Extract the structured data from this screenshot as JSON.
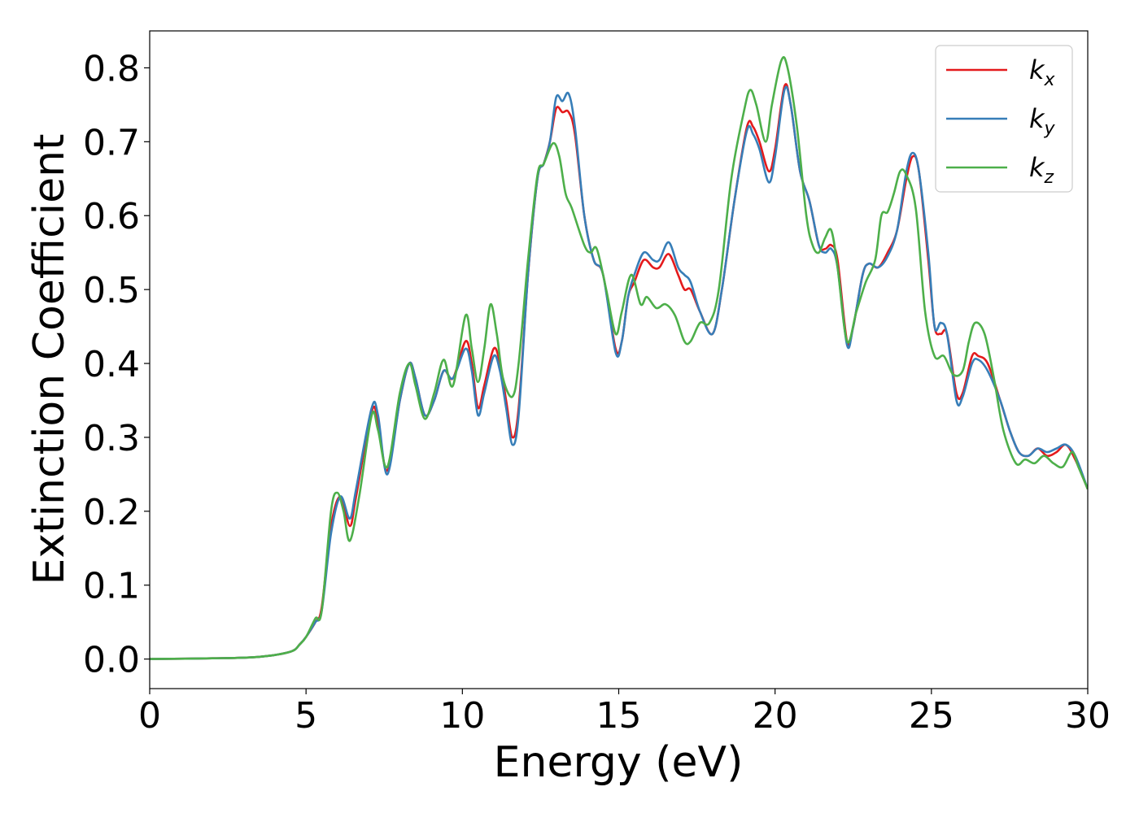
{
  "chart_data": {
    "type": "line",
    "xlabel": "Energy (eV)",
    "ylabel": "Extinction Coefficient",
    "xlim": [
      0,
      30
    ],
    "ylim": [
      -0.04,
      0.85
    ],
    "xticks": [
      0,
      5,
      10,
      15,
      20,
      25,
      30
    ],
    "xtick_labels": [
      "0",
      "5",
      "10",
      "15",
      "20",
      "25",
      "30"
    ],
    "yticks": [
      0.0,
      0.1,
      0.2,
      0.3,
      0.4,
      0.5,
      0.6,
      0.7,
      0.8
    ],
    "ytick_labels": [
      "0.0",
      "0.1",
      "0.2",
      "0.3",
      "0.4",
      "0.5",
      "0.6",
      "0.7",
      "0.8"
    ],
    "grid": false,
    "legend_position": "top-right",
    "series": [
      {
        "name": "k_x",
        "label_main": "k",
        "label_sub": "x",
        "color": "#e41a1c",
        "points": [
          [
            0,
            0
          ],
          [
            2,
            0.001
          ],
          [
            3.5,
            0.003
          ],
          [
            4.5,
            0.01
          ],
          [
            4.8,
            0.02
          ],
          [
            5.0,
            0.03
          ],
          [
            5.3,
            0.05
          ],
          [
            5.5,
            0.07
          ],
          [
            5.8,
            0.18
          ],
          [
            6.1,
            0.22
          ],
          [
            6.4,
            0.18
          ],
          [
            6.6,
            0.22
          ],
          [
            7.1,
            0.335
          ],
          [
            7.3,
            0.32
          ],
          [
            7.6,
            0.255
          ],
          [
            8.0,
            0.35
          ],
          [
            8.3,
            0.4
          ],
          [
            8.5,
            0.38
          ],
          [
            8.8,
            0.33
          ],
          [
            9.1,
            0.35
          ],
          [
            9.4,
            0.39
          ],
          [
            9.7,
            0.38
          ],
          [
            10.1,
            0.43
          ],
          [
            10.3,
            0.4
          ],
          [
            10.5,
            0.34
          ],
          [
            10.7,
            0.37
          ],
          [
            11.0,
            0.42
          ],
          [
            11.2,
            0.4
          ],
          [
            11.4,
            0.35
          ],
          [
            11.6,
            0.3
          ],
          [
            11.8,
            0.34
          ],
          [
            12.1,
            0.52
          ],
          [
            12.4,
            0.65
          ],
          [
            12.6,
            0.67
          ],
          [
            12.8,
            0.7
          ],
          [
            13.0,
            0.745
          ],
          [
            13.2,
            0.74
          ],
          [
            13.4,
            0.74
          ],
          [
            13.6,
            0.71
          ],
          [
            13.9,
            0.6
          ],
          [
            14.2,
            0.54
          ],
          [
            14.5,
            0.52
          ],
          [
            14.9,
            0.42
          ],
          [
            15.1,
            0.43
          ],
          [
            15.3,
            0.49
          ],
          [
            15.5,
            0.51
          ],
          [
            15.8,
            0.54
          ],
          [
            16.1,
            0.53
          ],
          [
            16.3,
            0.53
          ],
          [
            16.6,
            0.548
          ],
          [
            16.9,
            0.52
          ],
          [
            17.1,
            0.5
          ],
          [
            17.3,
            0.5
          ],
          [
            17.6,
            0.47
          ],
          [
            18.0,
            0.44
          ],
          [
            18.3,
            0.5
          ],
          [
            18.7,
            0.62
          ],
          [
            19.1,
            0.72
          ],
          [
            19.3,
            0.72
          ],
          [
            19.5,
            0.7
          ],
          [
            19.8,
            0.66
          ],
          [
            20.0,
            0.69
          ],
          [
            20.3,
            0.775
          ],
          [
            20.5,
            0.75
          ],
          [
            20.8,
            0.66
          ],
          [
            21.1,
            0.62
          ],
          [
            21.4,
            0.56
          ],
          [
            21.6,
            0.555
          ],
          [
            21.8,
            0.56
          ],
          [
            22.0,
            0.54
          ],
          [
            22.3,
            0.43
          ],
          [
            22.5,
            0.45
          ],
          [
            22.8,
            0.52
          ],
          [
            23.0,
            0.535
          ],
          [
            23.3,
            0.53
          ],
          [
            23.6,
            0.55
          ],
          [
            23.9,
            0.58
          ],
          [
            24.2,
            0.65
          ],
          [
            24.4,
            0.68
          ],
          [
            24.6,
            0.66
          ],
          [
            24.9,
            0.54
          ],
          [
            25.1,
            0.45
          ],
          [
            25.3,
            0.44
          ],
          [
            25.5,
            0.44
          ],
          [
            25.8,
            0.36
          ],
          [
            26.0,
            0.36
          ],
          [
            26.3,
            0.41
          ],
          [
            26.5,
            0.41
          ],
          [
            26.8,
            0.4
          ],
          [
            27.2,
            0.35
          ],
          [
            27.5,
            0.31
          ],
          [
            27.8,
            0.28
          ],
          [
            28.1,
            0.275
          ],
          [
            28.4,
            0.285
          ],
          [
            28.7,
            0.275
          ],
          [
            29.0,
            0.28
          ],
          [
            29.3,
            0.29
          ],
          [
            29.6,
            0.27
          ],
          [
            30,
            0.23
          ]
        ]
      },
      {
        "name": "k_y",
        "label_main": "k",
        "label_sub": "y",
        "color": "#377eb8",
        "points": [
          [
            0,
            0
          ],
          [
            2,
            0.001
          ],
          [
            3.5,
            0.003
          ],
          [
            4.5,
            0.01
          ],
          [
            4.8,
            0.02
          ],
          [
            5.0,
            0.03
          ],
          [
            5.3,
            0.05
          ],
          [
            5.5,
            0.065
          ],
          [
            5.8,
            0.17
          ],
          [
            6.1,
            0.22
          ],
          [
            6.4,
            0.19
          ],
          [
            6.6,
            0.23
          ],
          [
            7.1,
            0.34
          ],
          [
            7.3,
            0.33
          ],
          [
            7.6,
            0.25
          ],
          [
            8.0,
            0.35
          ],
          [
            8.3,
            0.4
          ],
          [
            8.5,
            0.38
          ],
          [
            8.8,
            0.33
          ],
          [
            9.1,
            0.35
          ],
          [
            9.4,
            0.39
          ],
          [
            9.7,
            0.38
          ],
          [
            10.1,
            0.42
          ],
          [
            10.3,
            0.39
          ],
          [
            10.5,
            0.33
          ],
          [
            10.7,
            0.36
          ],
          [
            11.0,
            0.41
          ],
          [
            11.2,
            0.39
          ],
          [
            11.4,
            0.34
          ],
          [
            11.6,
            0.29
          ],
          [
            11.8,
            0.33
          ],
          [
            12.1,
            0.52
          ],
          [
            12.4,
            0.65
          ],
          [
            12.6,
            0.67
          ],
          [
            12.8,
            0.7
          ],
          [
            13.0,
            0.76
          ],
          [
            13.2,
            0.755
          ],
          [
            13.4,
            0.765
          ],
          [
            13.6,
            0.72
          ],
          [
            13.9,
            0.6
          ],
          [
            14.2,
            0.54
          ],
          [
            14.5,
            0.52
          ],
          [
            14.9,
            0.415
          ],
          [
            15.1,
            0.43
          ],
          [
            15.3,
            0.49
          ],
          [
            15.5,
            0.52
          ],
          [
            15.8,
            0.55
          ],
          [
            16.1,
            0.54
          ],
          [
            16.3,
            0.54
          ],
          [
            16.6,
            0.564
          ],
          [
            16.9,
            0.53
          ],
          [
            17.1,
            0.52
          ],
          [
            17.3,
            0.51
          ],
          [
            17.6,
            0.47
          ],
          [
            18.0,
            0.44
          ],
          [
            18.3,
            0.5
          ],
          [
            18.7,
            0.62
          ],
          [
            19.1,
            0.715
          ],
          [
            19.3,
            0.71
          ],
          [
            19.5,
            0.69
          ],
          [
            19.8,
            0.645
          ],
          [
            20.0,
            0.68
          ],
          [
            20.3,
            0.77
          ],
          [
            20.5,
            0.75
          ],
          [
            20.8,
            0.66
          ],
          [
            21.1,
            0.62
          ],
          [
            21.4,
            0.56
          ],
          [
            21.6,
            0.55
          ],
          [
            21.8,
            0.555
          ],
          [
            22.0,
            0.53
          ],
          [
            22.3,
            0.425
          ],
          [
            22.5,
            0.45
          ],
          [
            22.8,
            0.52
          ],
          [
            23.0,
            0.535
          ],
          [
            23.3,
            0.53
          ],
          [
            23.6,
            0.545
          ],
          [
            23.9,
            0.58
          ],
          [
            24.2,
            0.66
          ],
          [
            24.4,
            0.685
          ],
          [
            24.6,
            0.66
          ],
          [
            24.9,
            0.55
          ],
          [
            25.1,
            0.45
          ],
          [
            25.3,
            0.455
          ],
          [
            25.5,
            0.44
          ],
          [
            25.8,
            0.35
          ],
          [
            26.0,
            0.355
          ],
          [
            26.3,
            0.4
          ],
          [
            26.5,
            0.405
          ],
          [
            26.8,
            0.39
          ],
          [
            27.2,
            0.35
          ],
          [
            27.5,
            0.31
          ],
          [
            27.8,
            0.28
          ],
          [
            28.1,
            0.275
          ],
          [
            28.4,
            0.285
          ],
          [
            28.7,
            0.28
          ],
          [
            29.0,
            0.285
          ],
          [
            29.3,
            0.29
          ],
          [
            29.6,
            0.275
          ],
          [
            30,
            0.23
          ]
        ]
      },
      {
        "name": "k_z",
        "label_main": "k",
        "label_sub": "z",
        "color": "#4daf4a",
        "points": [
          [
            0,
            0
          ],
          [
            2,
            0.001
          ],
          [
            3.5,
            0.003
          ],
          [
            4.5,
            0.01
          ],
          [
            4.8,
            0.02
          ],
          [
            5.0,
            0.03
          ],
          [
            5.3,
            0.055
          ],
          [
            5.5,
            0.065
          ],
          [
            5.8,
            0.2
          ],
          [
            6.0,
            0.225
          ],
          [
            6.2,
            0.2
          ],
          [
            6.4,
            0.16
          ],
          [
            6.7,
            0.22
          ],
          [
            7.1,
            0.33
          ],
          [
            7.3,
            0.31
          ],
          [
            7.6,
            0.26
          ],
          [
            8.0,
            0.36
          ],
          [
            8.3,
            0.4
          ],
          [
            8.5,
            0.37
          ],
          [
            8.8,
            0.325
          ],
          [
            9.1,
            0.36
          ],
          [
            9.4,
            0.405
          ],
          [
            9.7,
            0.37
          ],
          [
            10.1,
            0.465
          ],
          [
            10.3,
            0.42
          ],
          [
            10.5,
            0.375
          ],
          [
            10.7,
            0.42
          ],
          [
            10.9,
            0.48
          ],
          [
            11.1,
            0.44
          ],
          [
            11.3,
            0.38
          ],
          [
            11.6,
            0.355
          ],
          [
            11.8,
            0.4
          ],
          [
            12.1,
            0.54
          ],
          [
            12.4,
            0.655
          ],
          [
            12.6,
            0.67
          ],
          [
            12.9,
            0.698
          ],
          [
            13.1,
            0.68
          ],
          [
            13.3,
            0.63
          ],
          [
            13.5,
            0.61
          ],
          [
            13.9,
            0.56
          ],
          [
            14.1,
            0.55
          ],
          [
            14.3,
            0.555
          ],
          [
            14.6,
            0.5
          ],
          [
            14.9,
            0.44
          ],
          [
            15.1,
            0.47
          ],
          [
            15.4,
            0.52
          ],
          [
            15.7,
            0.48
          ],
          [
            15.9,
            0.49
          ],
          [
            16.2,
            0.475
          ],
          [
            16.5,
            0.48
          ],
          [
            16.8,
            0.465
          ],
          [
            17.1,
            0.43
          ],
          [
            17.3,
            0.43
          ],
          [
            17.6,
            0.455
          ],
          [
            17.9,
            0.455
          ],
          [
            18.2,
            0.5
          ],
          [
            18.6,
            0.65
          ],
          [
            19.0,
            0.74
          ],
          [
            19.2,
            0.77
          ],
          [
            19.4,
            0.75
          ],
          [
            19.7,
            0.7
          ],
          [
            19.9,
            0.75
          ],
          [
            20.2,
            0.81
          ],
          [
            20.4,
            0.8
          ],
          [
            20.7,
            0.72
          ],
          [
            21.0,
            0.6
          ],
          [
            21.2,
            0.56
          ],
          [
            21.4,
            0.55
          ],
          [
            21.6,
            0.57
          ],
          [
            21.8,
            0.58
          ],
          [
            22.0,
            0.53
          ],
          [
            22.3,
            0.43
          ],
          [
            22.6,
            0.47
          ],
          [
            22.9,
            0.51
          ],
          [
            23.2,
            0.54
          ],
          [
            23.4,
            0.6
          ],
          [
            23.6,
            0.605
          ],
          [
            23.8,
            0.63
          ],
          [
            24.0,
            0.66
          ],
          [
            24.2,
            0.655
          ],
          [
            24.5,
            0.61
          ],
          [
            24.8,
            0.47
          ],
          [
            25.1,
            0.41
          ],
          [
            25.4,
            0.41
          ],
          [
            25.7,
            0.385
          ],
          [
            26.0,
            0.39
          ],
          [
            26.2,
            0.43
          ],
          [
            26.4,
            0.455
          ],
          [
            26.7,
            0.44
          ],
          [
            27.0,
            0.38
          ],
          [
            27.3,
            0.31
          ],
          [
            27.7,
            0.265
          ],
          [
            28.0,
            0.27
          ],
          [
            28.3,
            0.265
          ],
          [
            28.6,
            0.275
          ],
          [
            28.9,
            0.265
          ],
          [
            29.2,
            0.26
          ],
          [
            29.5,
            0.28
          ],
          [
            29.7,
            0.26
          ],
          [
            30,
            0.23
          ]
        ]
      }
    ]
  }
}
